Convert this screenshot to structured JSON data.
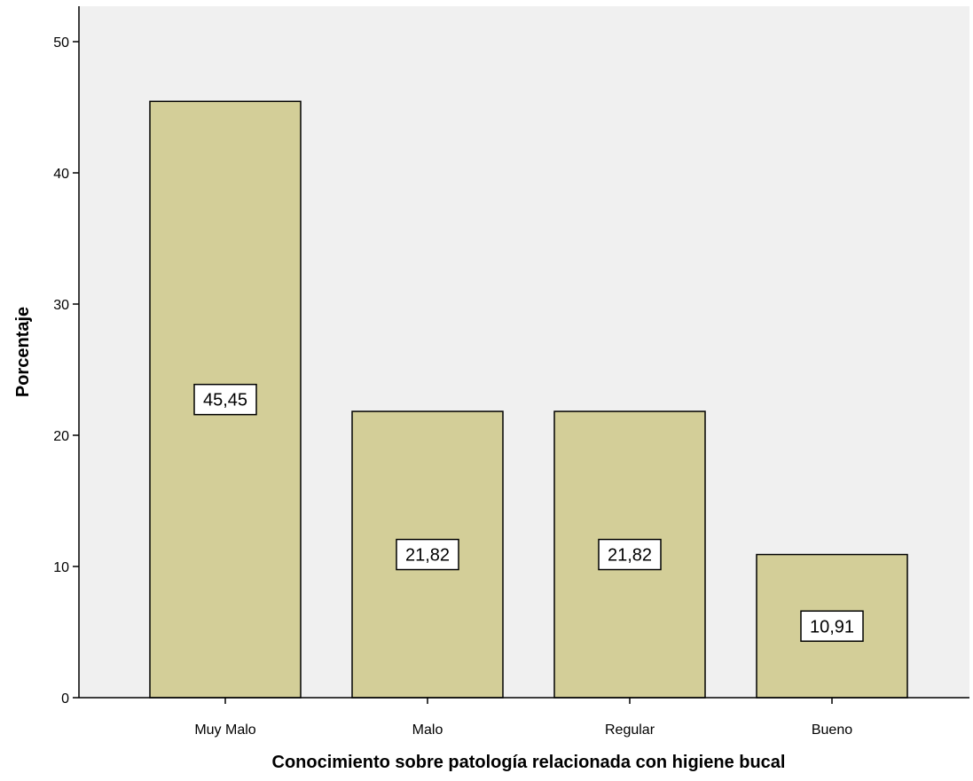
{
  "chart_data": {
    "type": "bar",
    "categories": [
      "Muy Malo",
      "Malo",
      "Regular",
      "Bueno"
    ],
    "values": [
      45.45,
      21.82,
      21.82,
      10.91
    ],
    "data_labels": [
      "45,45",
      "21,82",
      "21,82",
      "10,91"
    ],
    "xlabel": "Conocimiento sobre patología relacionada con higiene bucal",
    "ylabel": "Porcentaje",
    "ylim": [
      0,
      50
    ],
    "yticks": [
      0,
      10,
      20,
      30,
      40,
      50
    ],
    "ytick_labels": [
      "0",
      "10",
      "20",
      "30",
      "40",
      "50"
    ],
    "grid": false,
    "legend": "none",
    "bar_color": "#d3ce98",
    "plot_background": "#f0f0f0"
  }
}
